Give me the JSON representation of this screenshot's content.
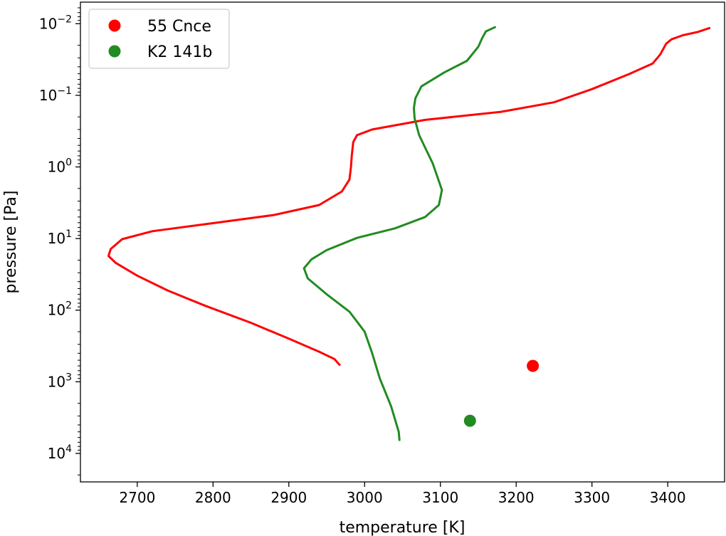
{
  "chart_data": {
    "type": "line",
    "title": "",
    "xlabel": "temperature [K]",
    "ylabel": "pressure [Pa]",
    "xlim": [
      2625,
      3475
    ],
    "ylim": [
      0.005,
      25000
    ],
    "y_scale": "log",
    "y_inverted": true,
    "grid": false,
    "legend_position": "top-left",
    "x_ticks": [
      2700,
      2800,
      2900,
      3000,
      3100,
      3200,
      3300,
      3400
    ],
    "x_tick_labels": [
      "2700",
      "2800",
      "2900",
      "3000",
      "3100",
      "3200",
      "3300",
      "3400"
    ],
    "y_ticks": [
      0.01,
      0.1,
      1,
      10,
      100,
      1000,
      10000
    ],
    "y_tick_labels": [
      {
        "base": "10",
        "exp": "−2"
      },
      {
        "base": "10",
        "exp": "−1"
      },
      {
        "base": "10",
        "exp": "0"
      },
      {
        "base": "10",
        "exp": "1"
      },
      {
        "base": "10",
        "exp": "2"
      },
      {
        "base": "10",
        "exp": "3"
      },
      {
        "base": "10",
        "exp": "4"
      }
    ],
    "series": [
      {
        "name": "55 Cnce",
        "color": "#ff0000",
        "points": [
          [
            3455,
            0.0115
          ],
          [
            3440,
            0.013
          ],
          [
            3420,
            0.0145
          ],
          [
            3405,
            0.0165
          ],
          [
            3398,
            0.019
          ],
          [
            3390,
            0.027
          ],
          [
            3380,
            0.036
          ],
          [
            3350,
            0.05
          ],
          [
            3300,
            0.082
          ],
          [
            3250,
            0.125
          ],
          [
            3180,
            0.17
          ],
          [
            3080,
            0.22
          ],
          [
            3010,
            0.3
          ],
          [
            2990,
            0.36
          ],
          [
            2985,
            0.45
          ],
          [
            2983,
            0.7
          ],
          [
            2982,
            1.0
          ],
          [
            2980,
            1.5
          ],
          [
            2970,
            2.2
          ],
          [
            2940,
            3.4
          ],
          [
            2880,
            4.7
          ],
          [
            2800,
            6.1
          ],
          [
            2720,
            7.9
          ],
          [
            2680,
            10.2
          ],
          [
            2665,
            14.0
          ],
          [
            2662,
            17.5
          ],
          [
            2672,
            22.0
          ],
          [
            2700,
            33.0
          ],
          [
            2740,
            53.0
          ],
          [
            2790,
            87.0
          ],
          [
            2850,
            150.0
          ],
          [
            2900,
            250.0
          ],
          [
            2940,
            380.0
          ],
          [
            2960,
            480.0
          ],
          [
            2967,
            580.0
          ]
        ]
      },
      {
        "name": "K2 141b",
        "color": "#228b22",
        "points": [
          [
            3172,
            0.0112
          ],
          [
            3160,
            0.0128
          ],
          [
            3155,
            0.016
          ],
          [
            3150,
            0.021
          ],
          [
            3135,
            0.033
          ],
          [
            3105,
            0.048
          ],
          [
            3075,
            0.075
          ],
          [
            3067,
            0.11
          ],
          [
            3065,
            0.15
          ],
          [
            3066,
            0.21
          ],
          [
            3072,
            0.36
          ],
          [
            3090,
            0.9
          ],
          [
            3102,
            2.1
          ],
          [
            3098,
            3.4
          ],
          [
            3080,
            5.0
          ],
          [
            3040,
            7.2
          ],
          [
            2990,
            9.8
          ],
          [
            2950,
            14.5
          ],
          [
            2930,
            19.5
          ],
          [
            2920,
            26.0
          ],
          [
            2925,
            36.0
          ],
          [
            2950,
            60.0
          ],
          [
            2980,
            105.0
          ],
          [
            3000,
            200.0
          ],
          [
            3010,
            400.0
          ],
          [
            3020,
            900.0
          ],
          [
            3035,
            2200.0
          ],
          [
            3045,
            5000.0
          ],
          [
            3046,
            6500.0
          ]
        ]
      }
    ],
    "scatter": [
      {
        "name": "55 Cnce",
        "x": 3222,
        "y": 600,
        "color": "#ff0000"
      },
      {
        "name": "K2 141b",
        "x": 3139,
        "y": 3500,
        "color": "#228b22"
      }
    ]
  }
}
